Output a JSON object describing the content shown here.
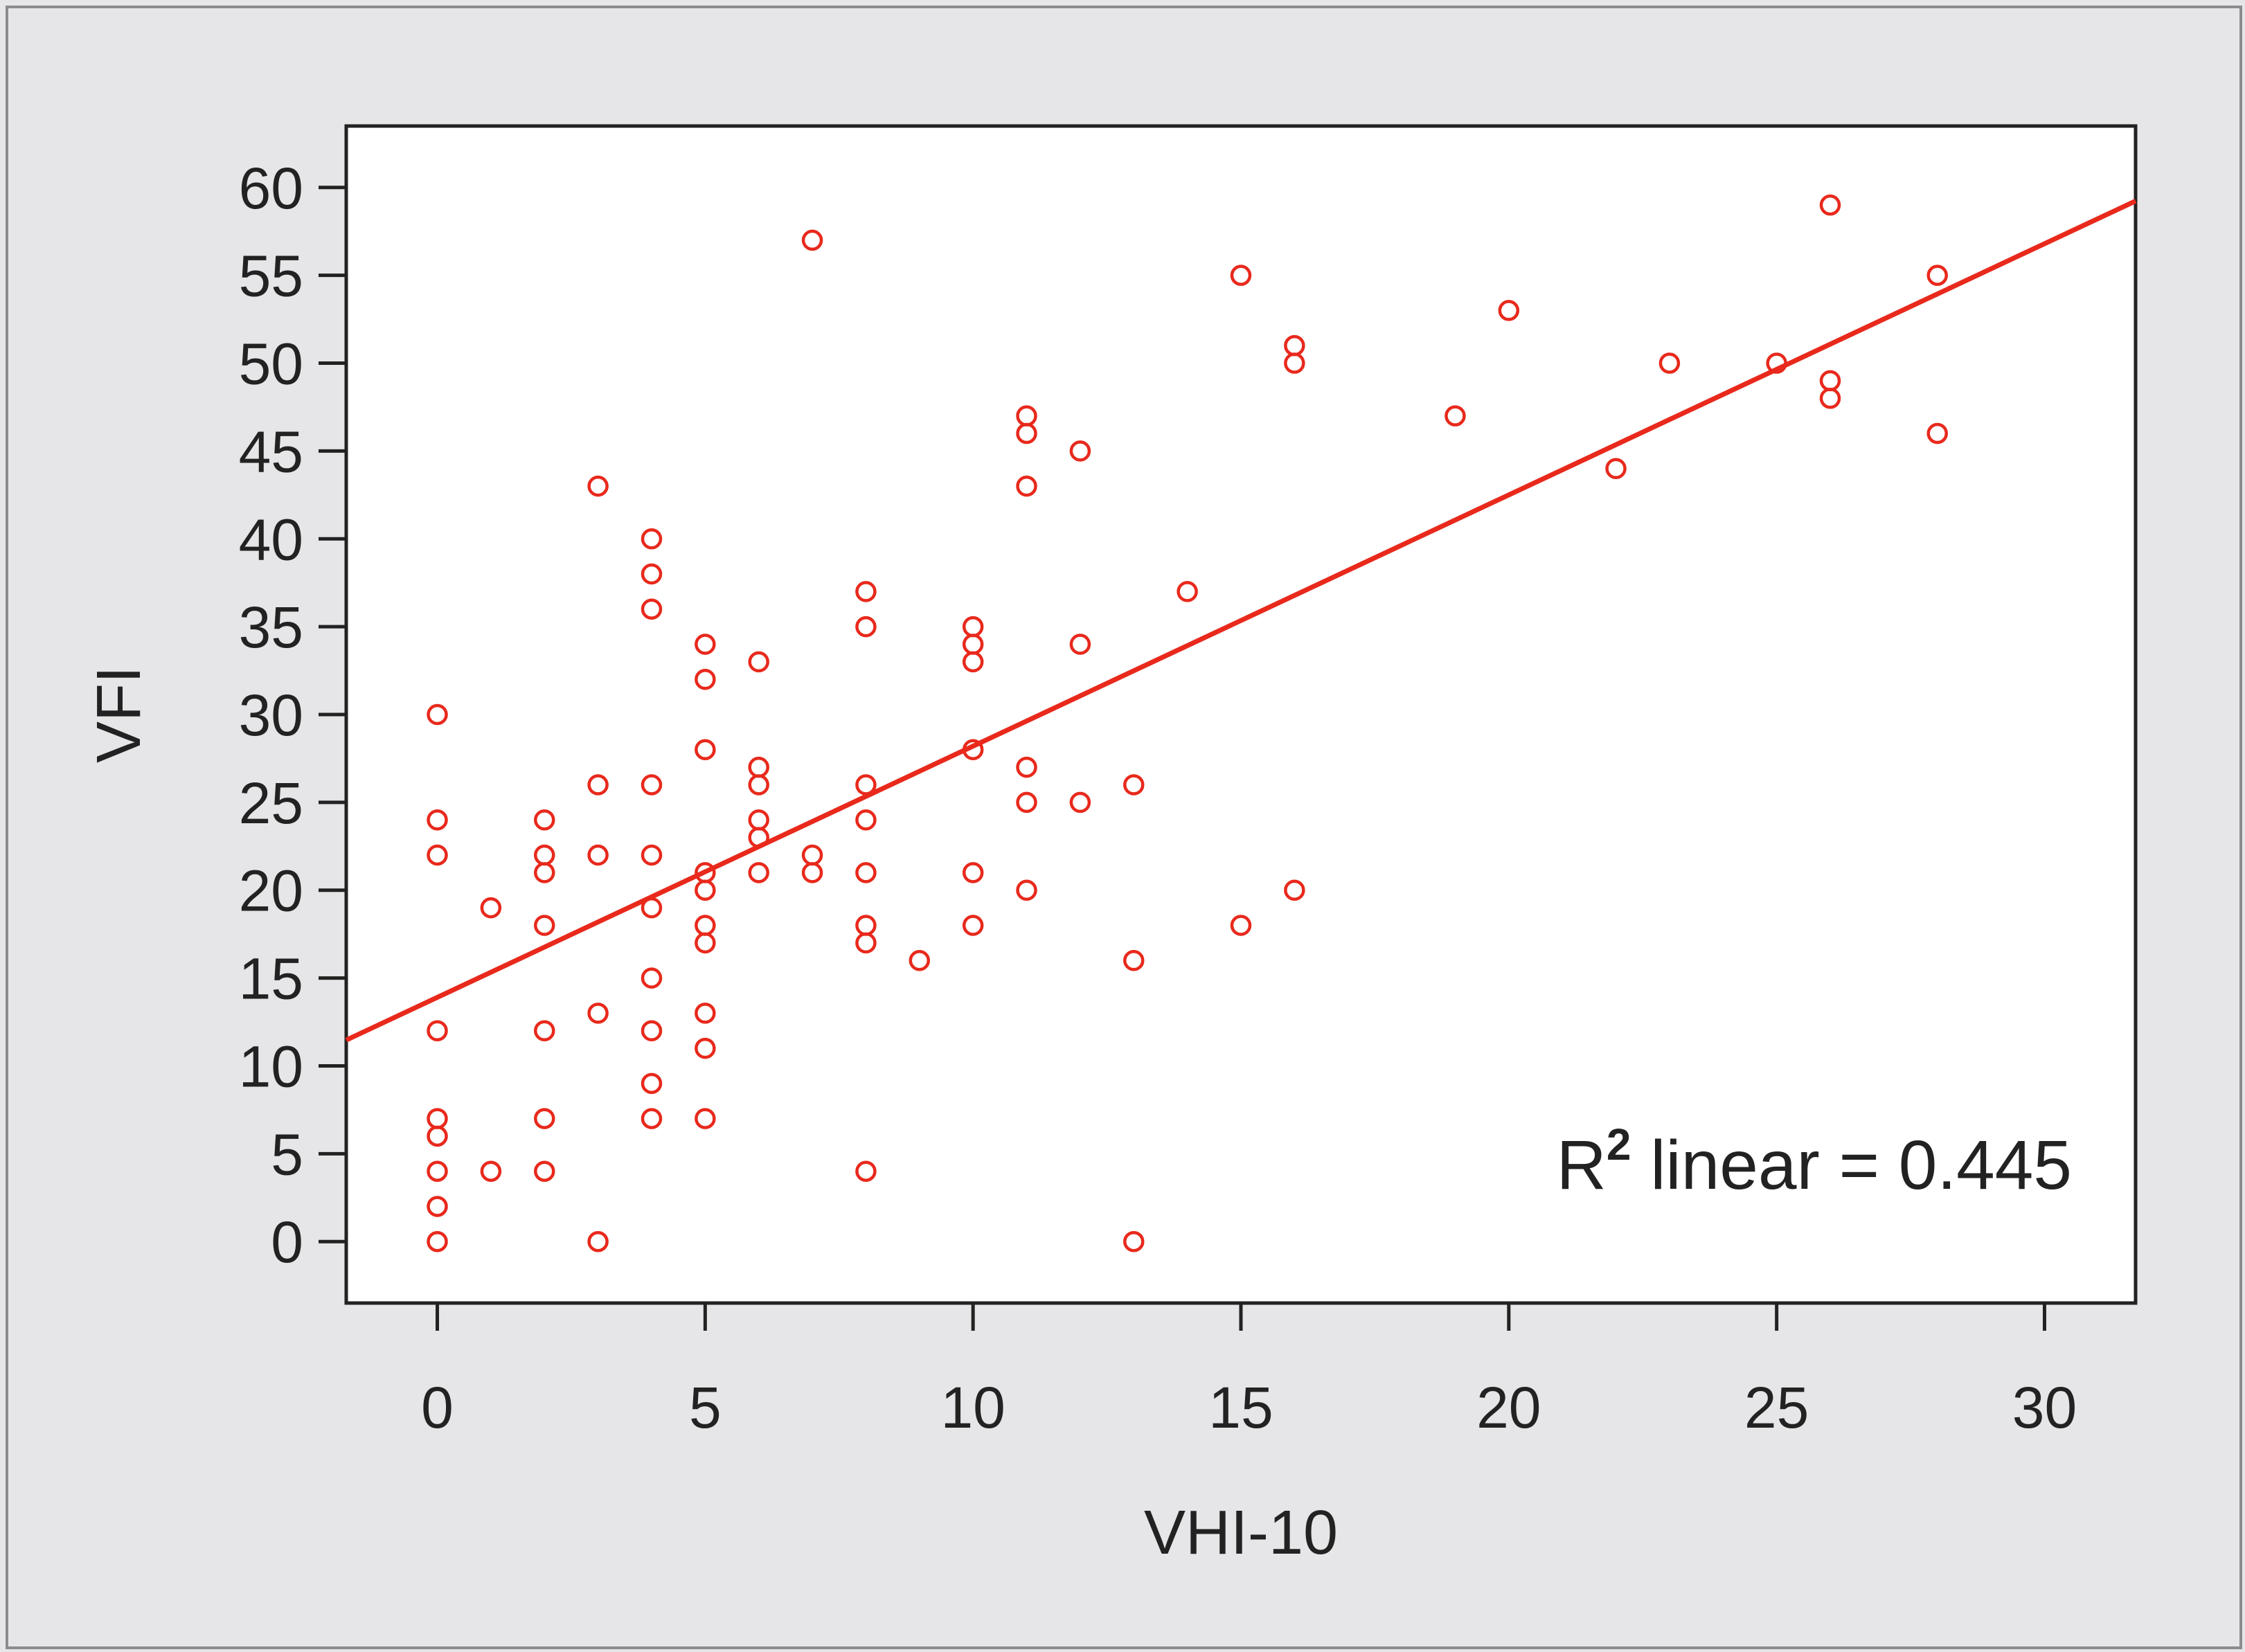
{
  "chart_data": {
    "type": "scatter",
    "title": "",
    "xlabel": "VHI-10",
    "ylabel": "VFI",
    "xlim": [
      -1.7,
      31.7
    ],
    "ylim": [
      -3.5,
      63.5
    ],
    "xticks": [
      "0",
      "5",
      "10",
      "15",
      "20",
      "25",
      "30"
    ],
    "yticks": [
      "0",
      "5",
      "10",
      "15",
      "20",
      "25",
      "30",
      "35",
      "40",
      "45",
      "50",
      "55",
      "60"
    ],
    "grid": false,
    "marker_color": "#e8291c",
    "line_color": "#e8291c",
    "fit_line": {
      "intercept": 13.9,
      "slope": 1.43
    },
    "annotation": {
      "base": "R",
      "superscript": "2",
      "text": " linear = 0.445"
    },
    "points": [
      [
        0,
        30
      ],
      [
        0,
        24
      ],
      [
        0,
        22
      ],
      [
        0,
        12
      ],
      [
        0,
        7
      ],
      [
        0,
        6
      ],
      [
        0,
        4
      ],
      [
        0,
        2
      ],
      [
        0,
        0
      ],
      [
        1,
        19
      ],
      [
        1,
        4
      ],
      [
        2,
        24
      ],
      [
        2,
        22
      ],
      [
        2,
        21
      ],
      [
        2,
        18
      ],
      [
        2,
        12
      ],
      [
        2,
        7
      ],
      [
        2,
        4
      ],
      [
        3,
        43
      ],
      [
        3,
        26
      ],
      [
        3,
        22
      ],
      [
        3,
        13
      ],
      [
        3,
        0
      ],
      [
        4,
        40
      ],
      [
        4,
        38
      ],
      [
        4,
        36
      ],
      [
        4,
        26
      ],
      [
        4,
        22
      ],
      [
        4,
        19
      ],
      [
        4,
        15
      ],
      [
        4,
        12
      ],
      [
        4,
        9
      ],
      [
        4,
        7
      ],
      [
        5,
        34
      ],
      [
        5,
        32
      ],
      [
        5,
        28
      ],
      [
        5,
        21
      ],
      [
        5,
        20
      ],
      [
        5,
        18
      ],
      [
        5,
        17
      ],
      [
        5,
        13
      ],
      [
        5,
        11
      ],
      [
        5,
        7
      ],
      [
        6,
        33
      ],
      [
        6,
        27
      ],
      [
        6,
        26
      ],
      [
        6,
        24
      ],
      [
        6,
        23
      ],
      [
        6,
        21
      ],
      [
        7,
        57
      ],
      [
        7,
        22
      ],
      [
        7,
        21
      ],
      [
        8,
        37
      ],
      [
        8,
        35
      ],
      [
        8,
        26
      ],
      [
        8,
        24
      ],
      [
        8,
        21
      ],
      [
        8,
        18
      ],
      [
        8,
        17
      ],
      [
        8,
        4
      ],
      [
        9,
        16
      ],
      [
        10,
        35
      ],
      [
        10,
        34
      ],
      [
        10,
        33
      ],
      [
        10,
        28
      ],
      [
        10,
        21
      ],
      [
        10,
        18
      ],
      [
        11,
        47
      ],
      [
        11,
        46
      ],
      [
        11,
        43
      ],
      [
        11,
        27
      ],
      [
        11,
        25
      ],
      [
        11,
        20
      ],
      [
        12,
        45
      ],
      [
        12,
        34
      ],
      [
        12,
        25
      ],
      [
        13,
        26
      ],
      [
        13,
        16
      ],
      [
        13,
        0
      ],
      [
        14,
        37
      ],
      [
        15,
        55
      ],
      [
        15,
        18
      ],
      [
        16,
        51
      ],
      [
        16,
        50
      ],
      [
        16,
        20
      ],
      [
        19,
        47
      ],
      [
        20,
        53
      ],
      [
        22,
        44
      ],
      [
        23,
        50
      ],
      [
        25,
        50
      ],
      [
        26,
        59
      ],
      [
        26,
        49
      ],
      [
        26,
        48
      ],
      [
        28,
        55
      ],
      [
        28,
        46
      ]
    ]
  }
}
